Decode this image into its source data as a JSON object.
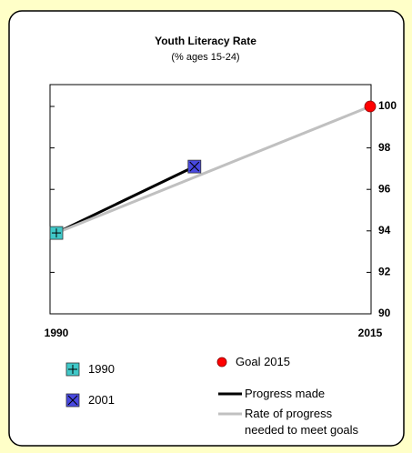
{
  "chart_data": {
    "type": "line",
    "title": "Youth Literacy Rate",
    "subtitle": "(% ages 15-24)",
    "xlim": [
      1990,
      2015
    ],
    "xticks": [
      1990,
      2015
    ],
    "ylim": [
      90,
      100
    ],
    "yticks": [
      90,
      92,
      94,
      96,
      98,
      100
    ],
    "y_axis_side": "right",
    "series": [
      {
        "name": "Progress made",
        "color": "#000000",
        "x": [
          1990,
          2001
        ],
        "values": [
          93.9,
          97.1
        ],
        "style": "line"
      },
      {
        "name": "Rate of progress needed to meet goals",
        "color": "#c0c0c0",
        "x": [
          1990,
          2015
        ],
        "values": [
          93.9,
          100
        ],
        "style": "line"
      },
      {
        "name": "1990",
        "color": "#40c8c8",
        "x": [
          1990
        ],
        "values": [
          93.9
        ],
        "marker": "plus-square"
      },
      {
        "name": "2001",
        "color": "#4848e0",
        "x": [
          2001
        ],
        "values": [
          97.1
        ],
        "marker": "x-square"
      },
      {
        "name": "Goal 2015",
        "color": "#ff0000",
        "x": [
          2015
        ],
        "values": [
          100
        ],
        "marker": "circle"
      }
    ]
  }
}
